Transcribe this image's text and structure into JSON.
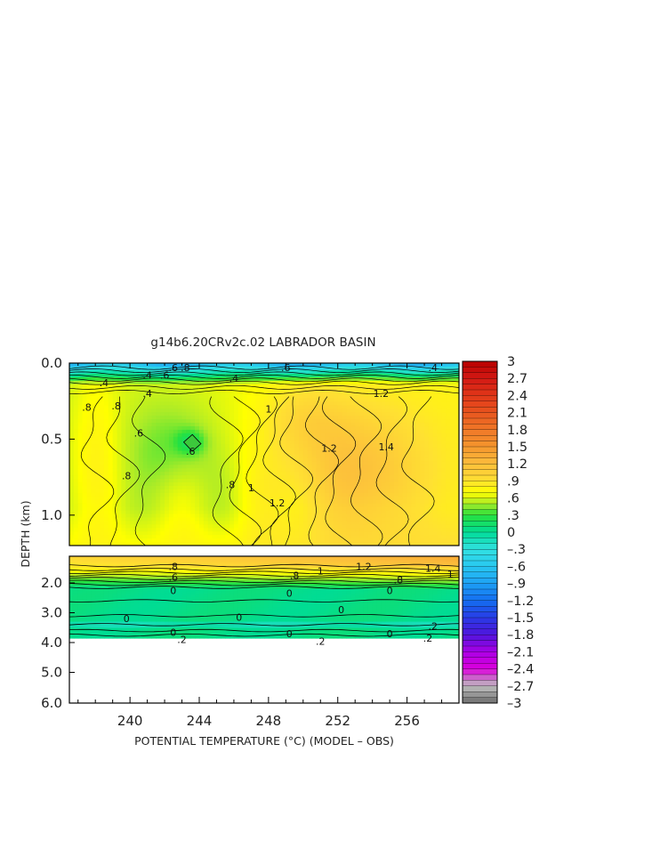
{
  "chart_data": {
    "type": "heatmap",
    "title": "g14b6.20CRv2c.02 LABRADOR BASIN",
    "xlabel": "POTENTIAL TEMPERATURE (°C) (MODEL – OBS)",
    "ylabel": "DEPTH (km)",
    "x_ticks": [
      "240",
      "244",
      "248",
      "252",
      "256"
    ],
    "x_tick_values": [
      240,
      244,
      248,
      252,
      256
    ],
    "xlim": [
      236.5,
      259
    ],
    "upper_panel": {
      "ylim": [
        0.0,
        1.2
      ],
      "y_ticks": [
        "0.0",
        "0.5",
        "1.0"
      ],
      "y_tick_values": [
        0.0,
        0.5,
        1.0
      ]
    },
    "lower_panel": {
      "ylim": [
        1.2,
        6.0
      ],
      "y_ticks": [
        "2.0",
        "3.0",
        "4.0",
        "5.0",
        "6.0"
      ],
      "y_tick_values": [
        2.0,
        3.0,
        4.0,
        5.0,
        6.0
      ]
    },
    "colorbar": {
      "labels": [
        "3",
        "2.7",
        "2.4",
        "2.1",
        "1.8",
        "1.5",
        "1.2",
        ".9",
        ".6",
        ".3",
        "0",
        "–.3",
        "–.6",
        "–.9",
        "–1.2",
        "–1.5",
        "–1.8",
        "–2.1",
        "–2.4",
        "–2.7",
        "–3"
      ],
      "values": [
        3,
        2.7,
        2.4,
        2.1,
        1.8,
        1.5,
        1.2,
        0.9,
        0.6,
        0.3,
        0,
        -0.3,
        -0.6,
        -0.9,
        -1.2,
        -1.5,
        -1.8,
        -2.1,
        -2.4,
        -2.7,
        -3
      ],
      "range": [
        -3,
        3
      ]
    },
    "contour_labels": [
      {
        "text": ".6",
        "x": 242.5,
        "depth": 0.03
      },
      {
        "text": ".8",
        "x": 243.2,
        "depth": 0.03
      },
      {
        "text": ".6",
        "x": 249.0,
        "depth": 0.03
      },
      {
        "text": ".4",
        "x": 257.5,
        "depth": 0.03
      },
      {
        "text": ".4",
        "x": 241.0,
        "depth": 0.08
      },
      {
        "text": ".6",
        "x": 242.0,
        "depth": 0.08
      },
      {
        "text": ".4",
        "x": 238.5,
        "depth": 0.13
      },
      {
        "text": ".4",
        "x": 246.0,
        "depth": 0.1
      },
      {
        "text": ".4",
        "x": 241.0,
        "depth": 0.2
      },
      {
        "text": "1.2",
        "x": 254.5,
        "depth": 0.2
      },
      {
        "text": "1",
        "x": 248.0,
        "depth": 0.3
      },
      {
        "text": ".8",
        "x": 237.5,
        "depth": 0.29
      },
      {
        "text": ".8",
        "x": 239.2,
        "depth": 0.28
      },
      {
        "text": ".6",
        "x": 240.5,
        "depth": 0.46
      },
      {
        "text": ".6",
        "x": 243.5,
        "depth": 0.58
      },
      {
        "text": "1.2",
        "x": 251.5,
        "depth": 0.56
      },
      {
        "text": "1.4",
        "x": 254.8,
        "depth": 0.55
      },
      {
        "text": ".8",
        "x": 239.8,
        "depth": 0.74
      },
      {
        "text": ".8",
        "x": 245.8,
        "depth": 0.8
      },
      {
        "text": "1",
        "x": 247.0,
        "depth": 0.82
      },
      {
        "text": "1.2",
        "x": 248.5,
        "depth": 0.92
      },
      {
        "text": ".8",
        "x": 242.5,
        "depth": 1.45
      },
      {
        "text": ".6",
        "x": 242.5,
        "depth": 1.8
      },
      {
        "text": "0",
        "x": 242.5,
        "depth": 2.25
      },
      {
        "text": ".8",
        "x": 249.5,
        "depth": 1.75
      },
      {
        "text": "1",
        "x": 251.0,
        "depth": 1.6
      },
      {
        "text": "1.2",
        "x": 253.5,
        "depth": 1.45
      },
      {
        "text": "1.4",
        "x": 257.5,
        "depth": 1.5
      },
      {
        "text": "1",
        "x": 258.5,
        "depth": 1.7
      },
      {
        "text": ".8",
        "x": 255.5,
        "depth": 1.9
      },
      {
        "text": "0",
        "x": 249.2,
        "depth": 2.35
      },
      {
        "text": "0",
        "x": 255.0,
        "depth": 2.25
      },
      {
        "text": "0",
        "x": 239.8,
        "depth": 3.2
      },
      {
        "text": "0",
        "x": 246.3,
        "depth": 3.15
      },
      {
        "text": "0",
        "x": 252.2,
        "depth": 2.9
      },
      {
        "text": "0",
        "x": 242.5,
        "depth": 3.65
      },
      {
        "text": ".2",
        "x": 243.0,
        "depth": 3.9
      },
      {
        "text": "0",
        "x": 249.2,
        "depth": 3.7
      },
      {
        "text": ".2",
        "x": 251.0,
        "depth": 3.95
      },
      {
        "text": "0",
        "x": 255.0,
        "depth": 3.7
      },
      {
        "text": ".2",
        "x": 257.5,
        "depth": 3.45
      },
      {
        "text": ".2",
        "x": 257.2,
        "depth": 3.85
      }
    ]
  }
}
